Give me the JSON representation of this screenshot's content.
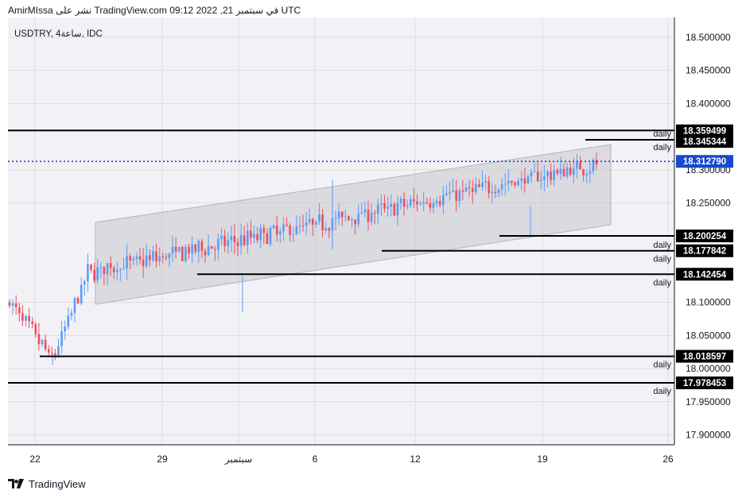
{
  "header": {
    "text": "AmirMIssa نشر على TradingView.com في سبتمبر 21, 2022 09:12 UTC"
  },
  "footer": {
    "brand": "TradingView"
  },
  "colors": {
    "up": "#5b9cf6",
    "down": "#ef4d5c",
    "line": "#000000",
    "current": "#1848cc",
    "badge_bg": "#000000",
    "current_bg": "#1848cc",
    "channel": "#c6c6cc",
    "pane_bg": "#f2f2f6"
  },
  "chart_data": {
    "type": "candlestick",
    "symbol": "USDTRY, 4ساعة, IDC",
    "ylim": [
      17.885,
      18.53
    ],
    "y_ticks": [
      "18.500000",
      "18.450000",
      "18.400000",
      "18.300000",
      "18.250000",
      "18.100000",
      "18.050000",
      "18.000000",
      "17.950000",
      "17.900000"
    ],
    "x_ticks": [
      "22",
      "29",
      "سبتمبر",
      "6",
      "12",
      "19",
      "26"
    ],
    "current_price": {
      "value": 18.31279,
      "label": "18.312790"
    },
    "levels": [
      {
        "label": "18.359499",
        "value": 18.359499,
        "tag": ""
      },
      {
        "label": "18.345344",
        "value": 18.345344,
        "tag": "daily"
      },
      {
        "label": "18.200254",
        "value": 18.200254,
        "tag": "daily"
      },
      {
        "label": "18.177842",
        "value": 18.177842,
        "tag": "daily"
      },
      {
        "label": "18.142454",
        "value": 18.142454,
        "tag": "daily"
      },
      {
        "label": "18.018597",
        "value": 18.018597,
        "tag": "daily"
      },
      {
        "label": "17.978453",
        "value": 17.978453,
        "tag": "daily"
      }
    ],
    "extra_tags": [
      "daily"
    ]
  }
}
